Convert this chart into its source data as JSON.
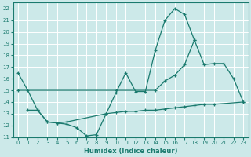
{
  "xlabel": "Humidex (Indice chaleur)",
  "xlim": [
    -0.5,
    23.5
  ],
  "ylim": [
    11,
    22.5
  ],
  "yticks": [
    11,
    12,
    13,
    14,
    15,
    16,
    17,
    18,
    19,
    20,
    21,
    22
  ],
  "xticks": [
    0,
    1,
    2,
    3,
    4,
    5,
    6,
    7,
    8,
    9,
    10,
    11,
    12,
    13,
    14,
    15,
    16,
    17,
    18,
    19,
    20,
    21,
    22,
    23
  ],
  "background_color": "#cce9e9",
  "grid_color": "#ffffff",
  "line_color": "#1a7a6e",
  "line1_x": [
    0,
    1,
    2,
    3,
    4,
    5,
    6,
    7,
    8,
    9,
    10,
    11,
    12,
    13,
    14,
    15,
    16,
    17,
    18
  ],
  "line1_y": [
    16.5,
    15.0,
    13.3,
    12.3,
    12.2,
    12.1,
    11.8,
    11.1,
    11.2,
    13.0,
    14.8,
    16.5,
    14.9,
    14.9,
    18.4,
    21.0,
    22.0,
    21.5,
    19.3
  ],
  "line2_x": [
    0,
    10,
    14,
    15,
    16,
    17,
    18,
    19,
    20,
    21,
    22,
    23
  ],
  "line2_y": [
    15.0,
    15.0,
    15.0,
    15.8,
    16.3,
    17.2,
    19.3,
    17.2,
    17.3,
    17.3,
    16.0,
    14.0
  ],
  "line3_x": [
    1,
    2,
    3,
    4,
    5,
    9,
    10,
    11,
    12,
    13,
    14,
    15,
    16,
    17,
    18,
    19,
    20,
    23
  ],
  "line3_y": [
    13.3,
    13.3,
    12.3,
    12.2,
    12.3,
    13.0,
    13.1,
    13.2,
    13.2,
    13.3,
    13.3,
    13.4,
    13.5,
    13.6,
    13.7,
    13.8,
    13.8,
    14.0
  ]
}
